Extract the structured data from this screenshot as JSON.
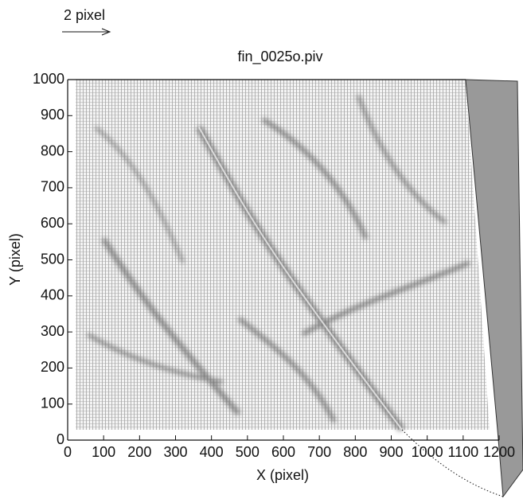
{
  "chart_data": {
    "type": "quiver",
    "title": "fin_0025o.piv",
    "x_label": "X  (pixel)",
    "y_label": "Y (pixel)",
    "scale_label": "2 pixel",
    "xlim": [
      0,
      1200
    ],
    "ylim": [
      0,
      1000
    ],
    "xticks": [
      0,
      100,
      200,
      300,
      400,
      500,
      600,
      700,
      800,
      900,
      1000,
      1100,
      1200
    ],
    "yticks": [
      0,
      100,
      200,
      300,
      400,
      500,
      600,
      700,
      800,
      900,
      1000
    ]
  }
}
